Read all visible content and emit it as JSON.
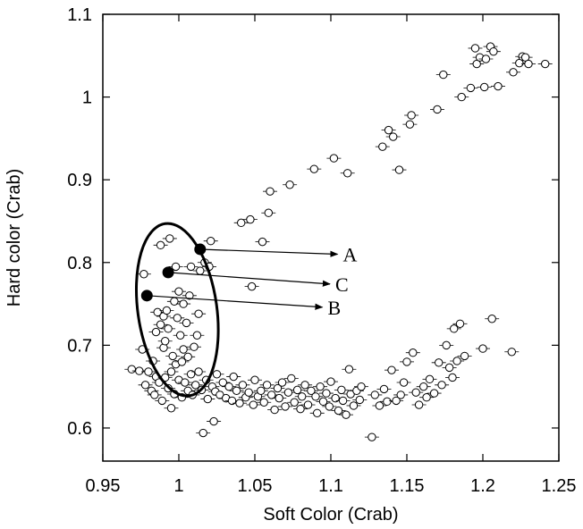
{
  "chart_data": {
    "type": "scatter",
    "xlabel": "Soft Color (Crab)",
    "ylabel": "Hard color (Crab)",
    "xlim": [
      0.95,
      1.25
    ],
    "ylim": [
      0.56,
      1.1
    ],
    "xticks": [
      "0.95",
      "1",
      "1.05",
      "1.1",
      "1.15",
      "1.2",
      "1.25"
    ],
    "yticks": [
      "0.6",
      "0.7",
      "0.8",
      "0.9",
      "1",
      "1.1"
    ],
    "grid": false,
    "series": [
      {
        "marker": "open-circle",
        "points": [
          [
            0.969,
            0.671
          ],
          [
            0.974,
            0.669
          ],
          [
            0.976,
            0.695
          ],
          [
            0.977,
            0.786
          ],
          [
            0.978,
            0.652
          ],
          [
            0.98,
            0.668
          ],
          [
            0.982,
            0.645
          ],
          [
            0.983,
            0.681
          ],
          [
            0.984,
            0.64
          ],
          [
            0.985,
            0.662
          ],
          [
            0.985,
            0.716
          ],
          [
            0.986,
            0.74
          ],
          [
            0.987,
            0.655
          ],
          [
            0.988,
            0.821
          ],
          [
            0.988,
            0.725
          ],
          [
            0.989,
            0.633
          ],
          [
            0.99,
            0.697
          ],
          [
            0.99,
            0.735
          ],
          [
            0.991,
            0.661
          ],
          [
            0.991,
            0.705
          ],
          [
            0.992,
            0.742
          ],
          [
            0.993,
            0.648
          ],
          [
            0.993,
            0.72
          ],
          [
            0.994,
            0.829
          ],
          [
            0.995,
            0.668
          ],
          [
            0.995,
            0.624
          ],
          [
            0.996,
            0.687
          ],
          [
            0.997,
            0.753
          ],
          [
            0.997,
            0.641
          ],
          [
            0.998,
            0.677
          ],
          [
            0.998,
            0.795
          ],
          [
            0.999,
            0.733
          ],
          [
            1.0,
            0.658
          ],
          [
            1.0,
            0.765
          ],
          [
            1.001,
            0.712
          ],
          [
            1.002,
            0.68
          ],
          [
            1.002,
            0.637
          ],
          [
            1.003,
            0.75
          ],
          [
            1.003,
            0.695
          ],
          [
            1.004,
            0.655
          ],
          [
            1.005,
            0.727
          ],
          [
            1.006,
            0.686
          ],
          [
            1.006,
            0.645
          ],
          [
            1.007,
            0.76
          ],
          [
            1.008,
            0.665
          ],
          [
            1.008,
            0.795
          ],
          [
            1.009,
            0.64
          ],
          [
            1.01,
            0.698
          ],
          [
            1.011,
            0.652
          ],
          [
            1.012,
            0.712
          ],
          [
            1.013,
            0.738
          ],
          [
            1.013,
            0.668
          ],
          [
            1.014,
            0.79
          ],
          [
            1.015,
            0.646
          ],
          [
            1.016,
            0.594
          ],
          [
            1.017,
            0.8
          ],
          [
            1.018,
            0.658
          ],
          [
            1.019,
            0.635
          ],
          [
            1.02,
            0.795
          ],
          [
            1.021,
            0.826
          ],
          [
            1.022,
            0.65
          ],
          [
            1.023,
            0.608
          ],
          [
            1.024,
            0.644
          ],
          [
            1.025,
            0.665
          ],
          [
            1.027,
            0.64
          ],
          [
            1.029,
            0.655
          ],
          [
            1.031,
            0.636
          ],
          [
            1.033,
            0.65
          ],
          [
            1.035,
            0.633
          ],
          [
            1.036,
            0.662
          ],
          [
            1.038,
            0.645
          ],
          [
            1.04,
            0.63
          ],
          [
            1.041,
            0.848
          ],
          [
            1.042,
            0.652
          ],
          [
            1.044,
            0.637
          ],
          [
            1.046,
            0.643
          ],
          [
            1.047,
            0.852
          ],
          [
            1.048,
            0.771
          ],
          [
            1.049,
            0.628
          ],
          [
            1.05,
            0.658
          ],
          [
            1.052,
            0.638
          ],
          [
            1.054,
            0.645
          ],
          [
            1.055,
            0.825
          ],
          [
            1.056,
            0.631
          ],
          [
            1.058,
            0.652
          ],
          [
            1.059,
            0.86
          ],
          [
            1.06,
            0.886
          ],
          [
            1.061,
            0.64
          ],
          [
            1.063,
            0.622
          ],
          [
            1.065,
            0.648
          ],
          [
            1.066,
            0.636
          ],
          [
            1.068,
            0.655
          ],
          [
            1.07,
            0.626
          ],
          [
            1.072,
            0.643
          ],
          [
            1.073,
            0.894
          ],
          [
            1.074,
            0.66
          ],
          [
            1.076,
            0.631
          ],
          [
            1.078,
            0.646
          ],
          [
            1.08,
            0.623
          ],
          [
            1.081,
            0.638
          ],
          [
            1.083,
            0.652
          ],
          [
            1.085,
            0.628
          ],
          [
            1.087,
            0.645
          ],
          [
            1.089,
            0.913
          ],
          [
            1.09,
            0.638
          ],
          [
            1.091,
            0.618
          ],
          [
            1.093,
            0.65
          ],
          [
            1.095,
            0.632
          ],
          [
            1.097,
            0.642
          ],
          [
            1.099,
            0.626
          ],
          [
            1.1,
            0.656
          ],
          [
            1.102,
            0.926
          ],
          [
            1.103,
            0.636
          ],
          [
            1.105,
            0.621
          ],
          [
            1.107,
            0.646
          ],
          [
            1.108,
            0.633
          ],
          [
            1.11,
            0.616
          ],
          [
            1.111,
            0.908
          ],
          [
            1.112,
            0.671
          ],
          [
            1.113,
            0.641
          ],
          [
            1.115,
            0.627
          ],
          [
            1.117,
            0.645
          ],
          [
            1.119,
            0.634
          ],
          [
            1.12,
            0.65
          ],
          [
            1.127,
            0.589
          ],
          [
            1.129,
            0.64
          ],
          [
            1.132,
            0.627
          ],
          [
            1.134,
            0.94
          ],
          [
            1.135,
            0.647
          ],
          [
            1.137,
            0.632
          ],
          [
            1.138,
            0.96
          ],
          [
            1.14,
            0.67
          ],
          [
            1.141,
            0.952
          ],
          [
            1.143,
            0.633
          ],
          [
            1.145,
            0.912
          ],
          [
            1.146,
            0.64
          ],
          [
            1.148,
            0.655
          ],
          [
            1.15,
            0.68
          ],
          [
            1.152,
            0.967
          ],
          [
            1.153,
            0.978
          ],
          [
            1.154,
            0.691
          ],
          [
            1.156,
            0.643
          ],
          [
            1.158,
            0.628
          ],
          [
            1.161,
            0.65
          ],
          [
            1.163,
            0.637
          ],
          [
            1.165,
            0.659
          ],
          [
            1.168,
            0.642
          ],
          [
            1.17,
            0.985
          ],
          [
            1.171,
            0.679
          ],
          [
            1.173,
            0.652
          ],
          [
            1.174,
            1.027
          ],
          [
            1.176,
            0.7
          ],
          [
            1.178,
            0.673
          ],
          [
            1.18,
            0.661
          ],
          [
            1.181,
            0.72
          ],
          [
            1.183,
            0.681
          ],
          [
            1.185,
            0.726
          ],
          [
            1.186,
            1.0
          ],
          [
            1.188,
            0.687
          ],
          [
            1.192,
            1.011
          ],
          [
            1.195,
            1.059
          ],
          [
            1.196,
            1.04
          ],
          [
            1.198,
            1.048
          ],
          [
            1.2,
            0.696
          ],
          [
            1.201,
            1.012
          ],
          [
            1.202,
            1.046
          ],
          [
            1.205,
            1.061
          ],
          [
            1.206,
            0.732
          ],
          [
            1.207,
            1.055
          ],
          [
            1.21,
            1.013
          ],
          [
            1.219,
            0.692
          ],
          [
            1.22,
            1.03
          ],
          [
            1.224,
            1.041
          ],
          [
            1.226,
            1.049
          ],
          [
            1.228,
            1.048
          ],
          [
            1.23,
            1.04
          ],
          [
            1.241,
            1.04
          ]
        ]
      }
    ],
    "highlighted_points": [
      {
        "label": "A",
        "x": 1.014,
        "y": 0.816,
        "label_x": 1.115,
        "label_y": 0.81
      },
      {
        "label": "C",
        "x": 0.993,
        "y": 0.788,
        "label_x": 1.11,
        "label_y": 0.774
      },
      {
        "label": "B",
        "x": 0.979,
        "y": 0.76,
        "label_x": 1.105,
        "label_y": 0.746
      }
    ],
    "ellipse": {
      "cx": 0.999,
      "cy": 0.743,
      "rx": 0.026,
      "ry": 0.105,
      "rotation_deg": -8
    }
  }
}
